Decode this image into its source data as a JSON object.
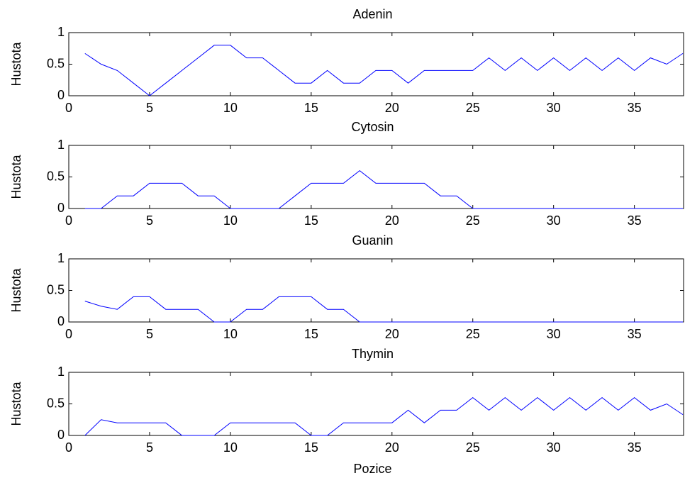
{
  "chart_data": [
    {
      "type": "line",
      "title": "Adenin",
      "ylabel": "Hustota",
      "x": [
        1,
        2,
        3,
        4,
        5,
        6,
        7,
        8,
        9,
        10,
        11,
        12,
        13,
        14,
        15,
        16,
        17,
        18,
        19,
        20,
        21,
        22,
        23,
        24,
        25,
        26,
        27,
        28,
        29,
        30,
        31,
        32,
        33,
        34,
        35,
        36,
        37,
        38
      ],
      "series": [
        {
          "color": "#0000ff",
          "values": [
            0.67,
            0.5,
            0.4,
            0.2,
            0,
            0.2,
            0.4,
            0.6,
            0.8,
            0.8,
            0.6,
            0.6,
            0.4,
            0.2,
            0.2,
            0.4,
            0.2,
            0.2,
            0.4,
            0.4,
            0.2,
            0.4,
            0.4,
            0.4,
            0.4,
            0.6,
            0.4,
            0.6,
            0.4,
            0.6,
            0.4,
            0.6,
            0.4,
            0.6,
            0.4,
            0.6,
            0.5,
            0.67
          ]
        }
      ],
      "xlim": [
        0,
        38
      ],
      "xticks": [
        0,
        5,
        10,
        15,
        20,
        25,
        30,
        35
      ],
      "ylim": [
        0,
        1
      ],
      "yticks": [
        0,
        0.5,
        1
      ]
    },
    {
      "type": "line",
      "title": "Cytosin",
      "ylabel": "Hustota",
      "x": [
        1,
        2,
        3,
        4,
        5,
        6,
        7,
        8,
        9,
        10,
        11,
        12,
        13,
        14,
        15,
        16,
        17,
        18,
        19,
        20,
        21,
        22,
        23,
        24,
        25,
        26,
        27,
        28,
        29,
        30,
        31,
        32,
        33,
        34,
        35,
        36,
        37,
        38
      ],
      "series": [
        {
          "color": "#0000ff",
          "values": [
            0,
            0,
            0.2,
            0.2,
            0.4,
            0.4,
            0.4,
            0.2,
            0.2,
            0,
            0,
            0,
            0,
            0.2,
            0.4,
            0.4,
            0.4,
            0.6,
            0.4,
            0.4,
            0.4,
            0.4,
            0.2,
            0.2,
            0,
            0,
            0,
            0,
            0,
            0,
            0,
            0,
            0,
            0,
            0,
            0,
            0,
            0
          ]
        }
      ],
      "xlim": [
        0,
        38
      ],
      "xticks": [
        0,
        5,
        10,
        15,
        20,
        25,
        30,
        35
      ],
      "ylim": [
        0,
        1
      ],
      "yticks": [
        0,
        0.5,
        1
      ]
    },
    {
      "type": "line",
      "title": "Guanin",
      "ylabel": "Hustota",
      "x": [
        1,
        2,
        3,
        4,
        5,
        6,
        7,
        8,
        9,
        10,
        11,
        12,
        13,
        14,
        15,
        16,
        17,
        18,
        19,
        20,
        21,
        22,
        23,
        24,
        25,
        26,
        27,
        28,
        29,
        30,
        31,
        32,
        33,
        34,
        35,
        36,
        37,
        38
      ],
      "series": [
        {
          "color": "#0000ff",
          "values": [
            0.33,
            0.25,
            0.2,
            0.4,
            0.4,
            0.2,
            0.2,
            0.2,
            0,
            0,
            0.2,
            0.2,
            0.4,
            0.4,
            0.4,
            0.2,
            0.2,
            0,
            0,
            0,
            0,
            0,
            0,
            0,
            0,
            0,
            0,
            0,
            0,
            0,
            0,
            0,
            0,
            0,
            0,
            0,
            0,
            0
          ]
        }
      ],
      "xlim": [
        0,
        38
      ],
      "xticks": [
        0,
        5,
        10,
        15,
        20,
        25,
        30,
        35
      ],
      "ylim": [
        0,
        1
      ],
      "yticks": [
        0,
        0.5,
        1
      ]
    },
    {
      "type": "line",
      "title": "Thymin",
      "ylabel": "Hustota",
      "xlabel": "Pozice",
      "x": [
        1,
        2,
        3,
        4,
        5,
        6,
        7,
        8,
        9,
        10,
        11,
        12,
        13,
        14,
        15,
        16,
        17,
        18,
        19,
        20,
        21,
        22,
        23,
        24,
        25,
        26,
        27,
        28,
        29,
        30,
        31,
        32,
        33,
        34,
        35,
        36,
        37,
        38
      ],
      "series": [
        {
          "color": "#0000ff",
          "values": [
            0,
            0.25,
            0.2,
            0.2,
            0.2,
            0.2,
            0,
            0,
            0,
            0.2,
            0.2,
            0.2,
            0.2,
            0.2,
            0,
            0,
            0.2,
            0.2,
            0.2,
            0.2,
            0.4,
            0.2,
            0.4,
            0.4,
            0.6,
            0.4,
            0.6,
            0.4,
            0.6,
            0.4,
            0.6,
            0.4,
            0.6,
            0.4,
            0.6,
            0.4,
            0.5,
            0.33
          ]
        }
      ],
      "xlim": [
        0,
        38
      ],
      "xticks": [
        0,
        5,
        10,
        15,
        20,
        25,
        30,
        35
      ],
      "ylim": [
        0,
        1
      ],
      "yticks": [
        0,
        0.5,
        1
      ]
    }
  ]
}
